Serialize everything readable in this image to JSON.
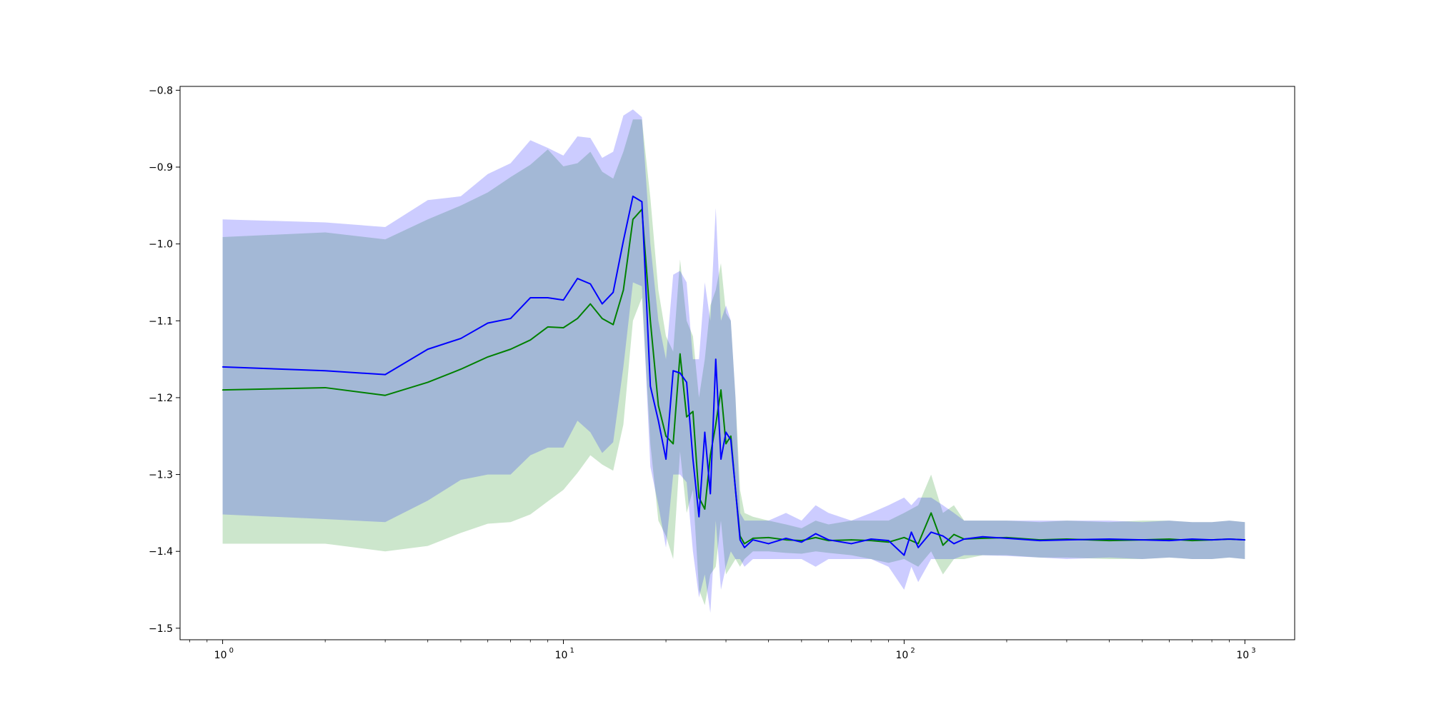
{
  "chart_data": {
    "type": "line",
    "title": "",
    "xlabel": "",
    "ylabel": "",
    "xscale": "log",
    "xlim": [
      0.75,
      1400
    ],
    "ylim": [
      -1.515,
      -0.795
    ],
    "grid": false,
    "legend": "none",
    "x_ticks": [
      {
        "value": 1,
        "base": "10",
        "exp": "0"
      },
      {
        "value": 10,
        "base": "10",
        "exp": "1"
      },
      {
        "value": 100,
        "base": "10",
        "exp": "2"
      },
      {
        "value": 1000,
        "base": "10",
        "exp": "3"
      }
    ],
    "y_ticks": [
      {
        "value": -0.8,
        "label": "−0.8"
      },
      {
        "value": -0.9,
        "label": "−0.9"
      },
      {
        "value": -1.0,
        "label": "−1.0"
      },
      {
        "value": -1.1,
        "label": "−1.1"
      },
      {
        "value": -1.2,
        "label": "−1.2"
      },
      {
        "value": -1.3,
        "label": "−1.3"
      },
      {
        "value": -1.4,
        "label": "−1.4"
      },
      {
        "value": -1.5,
        "label": "−1.5"
      }
    ],
    "colors": {
      "green_line": "#008000",
      "green_band": "#008000",
      "blue_line": "#0000ff",
      "blue_band": "#0000ff",
      "band_opacity": 0.2
    },
    "series": [
      {
        "color": "green",
        "x": [
          1,
          2,
          3,
          4,
          5,
          6,
          7,
          8,
          9,
          10,
          11,
          12,
          13,
          14,
          15,
          16,
          17,
          18,
          19,
          20,
          21,
          22,
          23,
          24,
          25,
          26,
          27,
          28,
          29,
          30,
          31,
          32,
          33,
          34,
          36,
          40,
          45,
          50,
          55,
          60,
          70,
          80,
          90,
          100,
          110,
          120,
          130,
          140,
          150,
          170,
          200,
          250,
          300,
          400,
          500,
          600,
          700,
          800,
          900,
          1000
        ],
        "mean": [
          -1.19,
          -1.187,
          -1.197,
          -1.18,
          -1.163,
          -1.147,
          -1.137,
          -1.125,
          -1.108,
          -1.109,
          -1.097,
          -1.078,
          -1.097,
          -1.105,
          -1.06,
          -0.968,
          -0.955,
          -1.1,
          -1.21,
          -1.25,
          -1.26,
          -1.143,
          -1.225,
          -1.218,
          -1.33,
          -1.345,
          -1.275,
          -1.235,
          -1.19,
          -1.26,
          -1.25,
          -1.32,
          -1.38,
          -1.39,
          -1.383,
          -1.382,
          -1.385,
          -1.386,
          -1.382,
          -1.386,
          -1.385,
          -1.386,
          -1.388,
          -1.382,
          -1.39,
          -1.35,
          -1.392,
          -1.378,
          -1.384,
          -1.383,
          -1.382,
          -1.385,
          -1.384,
          -1.386,
          -1.385,
          -1.384,
          -1.386,
          -1.385,
          -1.384,
          -1.385
        ],
        "upper": [
          -0.991,
          -0.985,
          -0.994,
          -0.968,
          -0.95,
          -0.933,
          -0.913,
          -0.897,
          -0.877,
          -0.899,
          -0.895,
          -0.88,
          -0.906,
          -0.915,
          -0.88,
          -0.838,
          -0.838,
          -0.94,
          -1.06,
          -1.12,
          -1.14,
          -1.02,
          -1.1,
          -1.12,
          -1.2,
          -1.15,
          -1.08,
          -1.06,
          -1.025,
          -1.09,
          -1.1,
          -1.2,
          -1.32,
          -1.35,
          -1.355,
          -1.36,
          -1.365,
          -1.37,
          -1.36,
          -1.365,
          -1.36,
          -1.36,
          -1.36,
          -1.35,
          -1.34,
          -1.3,
          -1.35,
          -1.34,
          -1.36,
          -1.36,
          -1.36,
          -1.362,
          -1.36,
          -1.362,
          -1.36,
          -1.36,
          -1.362,
          -1.362,
          -1.36,
          -1.362
        ],
        "lower": [
          -1.39,
          -1.39,
          -1.4,
          -1.393,
          -1.376,
          -1.364,
          -1.362,
          -1.352,
          -1.335,
          -1.32,
          -1.298,
          -1.275,
          -1.287,
          -1.295,
          -1.235,
          -1.1,
          -1.07,
          -1.26,
          -1.36,
          -1.38,
          -1.41,
          -1.27,
          -1.35,
          -1.32,
          -1.45,
          -1.47,
          -1.43,
          -1.42,
          -1.36,
          -1.43,
          -1.42,
          -1.41,
          -1.42,
          -1.41,
          -1.4,
          -1.4,
          -1.402,
          -1.403,
          -1.4,
          -1.402,
          -1.405,
          -1.41,
          -1.415,
          -1.41,
          -1.42,
          -1.4,
          -1.43,
          -1.41,
          -1.41,
          -1.405,
          -1.405,
          -1.408,
          -1.408,
          -1.41,
          -1.41,
          -1.408,
          -1.41,
          -1.41,
          -1.408,
          -1.41
        ]
      },
      {
        "color": "blue",
        "x": [
          1,
          2,
          3,
          4,
          5,
          6,
          7,
          8,
          9,
          10,
          11,
          12,
          13,
          14,
          15,
          16,
          17,
          18,
          19,
          20,
          21,
          22,
          23,
          24,
          25,
          26,
          27,
          28,
          29,
          30,
          31,
          32,
          33,
          34,
          36,
          40,
          45,
          50,
          55,
          60,
          70,
          80,
          90,
          100,
          105,
          110,
          120,
          130,
          140,
          150,
          170,
          200,
          250,
          300,
          400,
          500,
          600,
          700,
          800,
          900,
          1000
        ],
        "mean": [
          -1.16,
          -1.165,
          -1.17,
          -1.137,
          -1.123,
          -1.103,
          -1.097,
          -1.07,
          -1.07,
          -1.073,
          -1.045,
          -1.052,
          -1.078,
          -1.063,
          -0.996,
          -0.938,
          -0.945,
          -1.185,
          -1.23,
          -1.28,
          -1.165,
          -1.168,
          -1.18,
          -1.28,
          -1.355,
          -1.245,
          -1.325,
          -1.15,
          -1.28,
          -1.245,
          -1.255,
          -1.32,
          -1.385,
          -1.395,
          -1.385,
          -1.39,
          -1.383,
          -1.388,
          -1.377,
          -1.385,
          -1.39,
          -1.384,
          -1.386,
          -1.405,
          -1.375,
          -1.395,
          -1.375,
          -1.38,
          -1.39,
          -1.384,
          -1.381,
          -1.383,
          -1.386,
          -1.385,
          -1.384,
          -1.385,
          -1.386,
          -1.384,
          -1.385,
          -1.384,
          -1.385
        ],
        "upper": [
          -0.968,
          -0.972,
          -0.978,
          -0.943,
          -0.938,
          -0.909,
          -0.895,
          -0.865,
          -0.875,
          -0.885,
          -0.86,
          -0.862,
          -0.888,
          -0.88,
          -0.833,
          -0.825,
          -0.835,
          -1.0,
          -1.1,
          -1.15,
          -1.04,
          -1.035,
          -1.05,
          -1.15,
          -1.15,
          -1.05,
          -1.1,
          -0.953,
          -1.1,
          -1.08,
          -1.1,
          -1.2,
          -1.35,
          -1.36,
          -1.36,
          -1.36,
          -1.35,
          -1.36,
          -1.34,
          -1.35,
          -1.36,
          -1.35,
          -1.34,
          -1.33,
          -1.34,
          -1.33,
          -1.33,
          -1.34,
          -1.35,
          -1.36,
          -1.36,
          -1.36,
          -1.36,
          -1.36,
          -1.36,
          -1.362,
          -1.36,
          -1.362,
          -1.362,
          -1.36,
          -1.362
        ],
        "lower": [
          -1.352,
          -1.358,
          -1.362,
          -1.334,
          -1.307,
          -1.3,
          -1.3,
          -1.275,
          -1.265,
          -1.265,
          -1.23,
          -1.245,
          -1.272,
          -1.258,
          -1.16,
          -1.05,
          -1.055,
          -1.29,
          -1.34,
          -1.395,
          -1.3,
          -1.3,
          -1.31,
          -1.4,
          -1.46,
          -1.43,
          -1.48,
          -1.36,
          -1.45,
          -1.42,
          -1.4,
          -1.41,
          -1.41,
          -1.42,
          -1.41,
          -1.41,
          -1.41,
          -1.41,
          -1.42,
          -1.41,
          -1.41,
          -1.41,
          -1.42,
          -1.45,
          -1.42,
          -1.44,
          -1.41,
          -1.41,
          -1.41,
          -1.405,
          -1.405,
          -1.406,
          -1.408,
          -1.41,
          -1.408,
          -1.41,
          -1.408,
          -1.41,
          -1.41,
          -1.408,
          -1.41
        ]
      }
    ]
  }
}
